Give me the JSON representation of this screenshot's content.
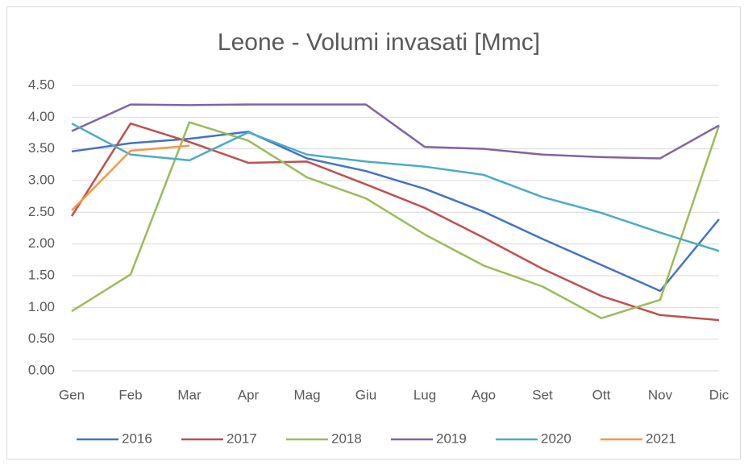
{
  "chart_data": {
    "type": "line",
    "title": "Leone - Volumi invasati [Mmc]",
    "categories": [
      "Gen",
      "Feb",
      "Mar",
      "Apr",
      "Mag",
      "Giu",
      "Lug",
      "Ago",
      "Set",
      "Ott",
      "Nov",
      "Dic"
    ],
    "series": [
      {
        "name": "2016",
        "color": "#4472c4",
        "values": [
          3.46,
          3.59,
          3.66,
          3.77,
          3.35,
          3.15,
          2.87,
          2.51,
          2.08,
          1.67,
          1.26,
          2.39
        ]
      },
      {
        "name": "2017",
        "color": "#c0504d",
        "values": [
          2.44,
          3.9,
          3.61,
          3.28,
          3.3,
          2.94,
          2.57,
          2.1,
          1.61,
          1.18,
          0.88,
          0.8
        ]
      },
      {
        "name": "2018",
        "color": "#9bbb59",
        "values": [
          0.94,
          1.52,
          3.92,
          3.63,
          3.05,
          2.72,
          2.15,
          1.66,
          1.33,
          0.83,
          1.12,
          3.87
        ]
      },
      {
        "name": "2019",
        "color": "#8064a2",
        "values": [
          3.78,
          4.2,
          4.19,
          4.2,
          4.2,
          4.2,
          3.53,
          3.5,
          3.41,
          3.37,
          3.35,
          3.87
        ]
      },
      {
        "name": "2020",
        "color": "#4bacc6",
        "values": [
          3.9,
          3.41,
          3.32,
          3.76,
          3.41,
          3.3,
          3.22,
          3.09,
          2.74,
          2.49,
          2.18,
          1.89
        ]
      },
      {
        "name": "2021",
        "color": "#f79646",
        "values": [
          2.53,
          3.47,
          3.55,
          null,
          null,
          null,
          null,
          null,
          null,
          null,
          null,
          null
        ]
      }
    ],
    "ylim": [
      0,
      4.5
    ],
    "yticks": [
      {
        "value": 0,
        "label": "0.00"
      },
      {
        "value": 0.5,
        "label": "0.50"
      },
      {
        "value": 1,
        "label": "1.00"
      },
      {
        "value": 1.5,
        "label": "1.50"
      },
      {
        "value": 2,
        "label": "2.00"
      },
      {
        "value": 2.5,
        "label": "2.50"
      },
      {
        "value": 3,
        "label": "3.00"
      },
      {
        "value": 3.5,
        "label": "3.50"
      },
      {
        "value": 4,
        "label": "4.00"
      },
      {
        "value": 4.5,
        "label": "4.50"
      }
    ],
    "grid": true,
    "legend": "bottom"
  }
}
